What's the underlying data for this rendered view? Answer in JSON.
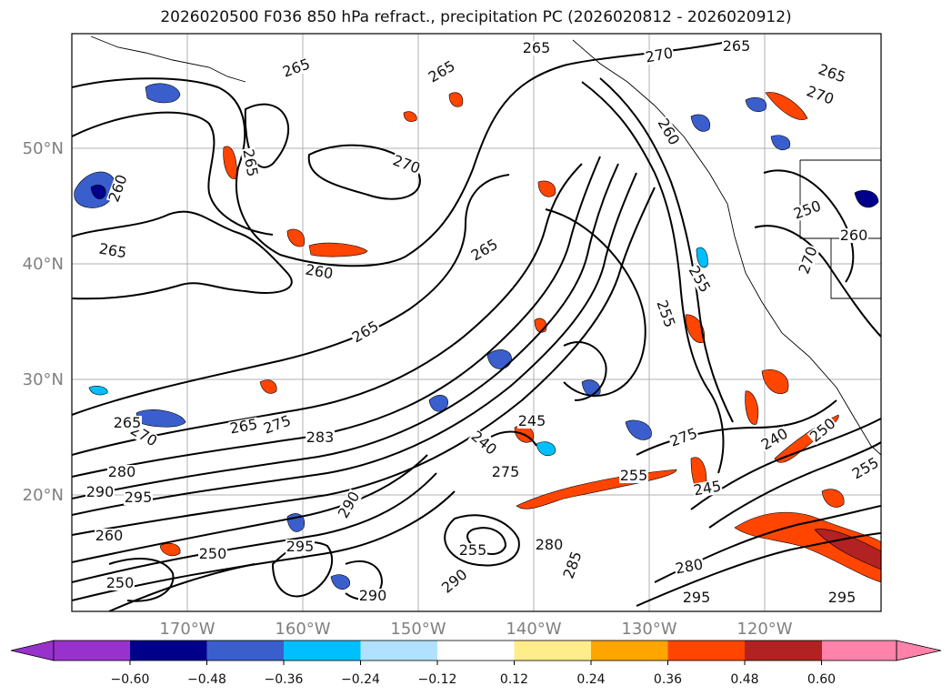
{
  "title": "2026020500 F036 850 hPa refract., precipitation PC (2026020812 - 2026020912)",
  "map": {
    "lon_labels": [
      "170°W",
      "160°W",
      "150°W",
      "140°W",
      "130°W",
      "120°W"
    ],
    "lat_labels": [
      "50°N",
      "40°N",
      "30°N",
      "20°N"
    ],
    "contour_labels": [
      "265",
      "265",
      "265",
      "265",
      "270",
      "260",
      "265",
      "260",
      "265",
      "265",
      "270",
      "265",
      "265",
      "270",
      "250",
      "260",
      "260",
      "255",
      "255",
      "270",
      "270",
      "275",
      "265",
      "290",
      "295",
      "280",
      "245",
      "240",
      "275",
      "255",
      "275",
      "240",
      "250",
      "255",
      "245",
      "283",
      "255",
      "280",
      "290",
      "285",
      "290",
      "280",
      "295",
      "295",
      "250",
      "260",
      "250",
      "290",
      "295",
      "265"
    ],
    "text_color": "#808080",
    "grid_color": "#b0b0b0"
  },
  "colorbar": {
    "ticks": [
      "−0.60",
      "−0.48",
      "−0.36",
      "−0.24",
      "−0.12",
      "0.12",
      "0.24",
      "0.36",
      "0.48",
      "0.60"
    ],
    "colors": [
      "#9932cc",
      "#00008b",
      "#3a5fcd",
      "#00bfff",
      "#b0e2ff",
      "#ffffff",
      "#ffec8b",
      "#ffa500",
      "#ff4500",
      "#b22222",
      "#ff82ab"
    ]
  }
}
